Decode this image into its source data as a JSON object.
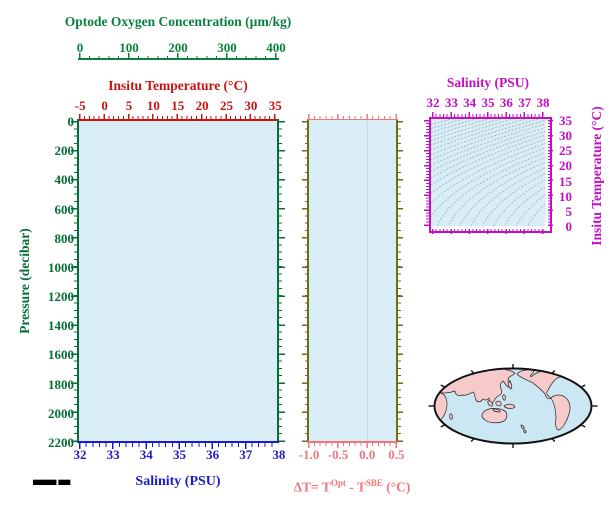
{
  "stamp": "██████████ █████",
  "chart_data": [
    {
      "type": "line",
      "id": "main_profile_plot",
      "note": "empty profile axes frame - no data series plotted",
      "series": [],
      "plot_bg": "#d8edf5",
      "axes": {
        "top_outer": {
          "label": "Optode Oxygen Concentration (µm/kg)",
          "range": [
            0,
            400
          ],
          "ticks": [
            "0",
            "100",
            "200",
            "300",
            "400"
          ],
          "color": "#0a8040"
        },
        "top_inner": {
          "label": "Insitu Temperature (°C)",
          "range": [
            -5,
            35
          ],
          "ticks": [
            "-5",
            "0",
            "5",
            "10",
            "15",
            "20",
            "25",
            "30",
            "35"
          ],
          "color": "#cc1111"
        },
        "left": {
          "label": "Pressure (decibar)",
          "range": [
            0,
            2200
          ],
          "inverted": true,
          "ticks": [
            "0",
            "200",
            "400",
            "600",
            "800",
            "1000",
            "1200",
            "1400",
            "1600",
            "1800",
            "2000",
            "2200"
          ],
          "color": "#056e35"
        },
        "bottom": {
          "label": "Salinity (PSU)",
          "range": [
            32,
            38
          ],
          "ticks": [
            "32",
            "33",
            "34",
            "35",
            "36",
            "37",
            "38"
          ],
          "color": "#1a1acc"
        }
      }
    },
    {
      "type": "line",
      "id": "delta_t_panel",
      "note": "empty temperature-difference panel with reference line at 0",
      "series": [],
      "reference_line_x": 0.0,
      "plot_bg": "#d8edf5",
      "axes": {
        "bottom": {
          "label_parts": {
            "prefix": "ΔT= T",
            "sup1": "Opt",
            "mid": " - T",
            "sup2": "SBE",
            "suffix": " (°C)"
          },
          "range": [
            -1.0,
            0.5
          ],
          "ticks": [
            "-1.0",
            "-0.5",
            "0.0",
            "0.5"
          ],
          "color": "#ee7878"
        },
        "sides": {
          "range": [
            0,
            2200
          ],
          "inverted": true,
          "color": "#6d6d15"
        }
      }
    },
    {
      "type": "isopycnal-contours",
      "id": "ts_diagram",
      "note": "T-S diagram with sigma-t density contours, no data points",
      "plot_bg": "#d8edf5",
      "frame_color": "#c60dc6",
      "contour_color": "#9db7bf",
      "salinity_range": [
        31.84,
        38.16
      ],
      "temp_range": [
        -1.6,
        36.0
      ],
      "sigma_levels": [
        18,
        18.5,
        19,
        19.5,
        20,
        20.5,
        21,
        21.5,
        22,
        22.5,
        23,
        23.5,
        24,
        24.5,
        25,
        25.5,
        26,
        26.5,
        27,
        27.5,
        28,
        28.5,
        29,
        29.5,
        30
      ],
      "axes": {
        "top": {
          "label": "Salinity (PSU)",
          "range": [
            32,
            38
          ],
          "ticks": [
            "32",
            "33",
            "34",
            "35",
            "36",
            "37",
            "38"
          ]
        },
        "right": {
          "label": "Insitu Temperature (°C)",
          "range": [
            0,
            35
          ],
          "ticks": [
            "35",
            "30",
            "25",
            "20",
            "15",
            "10",
            "5",
            "0"
          ]
        }
      }
    },
    {
      "type": "map",
      "id": "world_map",
      "projection": "elliptical, Pacific-centered",
      "ocean_color": "#cbe7f3",
      "land_color": "#f6caca"
    }
  ]
}
